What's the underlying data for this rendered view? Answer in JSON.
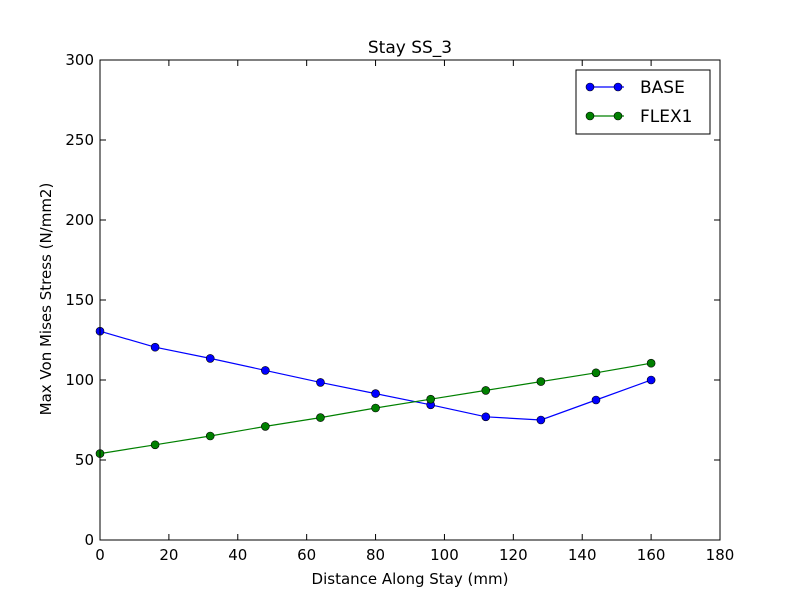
{
  "chart_data": {
    "type": "line",
    "title": "Stay SS_3",
    "xlabel": "Distance Along Stay (mm)",
    "ylabel": "Max Von Mises Stress (N/mm2)",
    "xlim": [
      0,
      180
    ],
    "ylim": [
      0,
      300
    ],
    "xticks": [
      0,
      20,
      40,
      60,
      80,
      100,
      120,
      140,
      160,
      180
    ],
    "yticks": [
      0,
      50,
      100,
      150,
      200,
      250,
      300
    ],
    "grid": false,
    "legend_position": "top-right",
    "series": [
      {
        "name": "BASE",
        "color": "#0000ff",
        "marker": "circle",
        "x": [
          0,
          16,
          32,
          48,
          64,
          80,
          96,
          112,
          128,
          144,
          160
        ],
        "y": [
          130.5,
          120.5,
          113.5,
          106,
          98.5,
          91.5,
          84.5,
          77,
          75,
          87.5,
          100
        ]
      },
      {
        "name": "FLEX1",
        "color": "#008000",
        "marker": "circle",
        "x": [
          0,
          16,
          32,
          48,
          64,
          80,
          96,
          112,
          128,
          144,
          160
        ],
        "y": [
          54,
          59.5,
          65,
          71,
          76.5,
          82.5,
          88,
          93.5,
          99,
          104.5,
          110.5
        ]
      }
    ]
  }
}
